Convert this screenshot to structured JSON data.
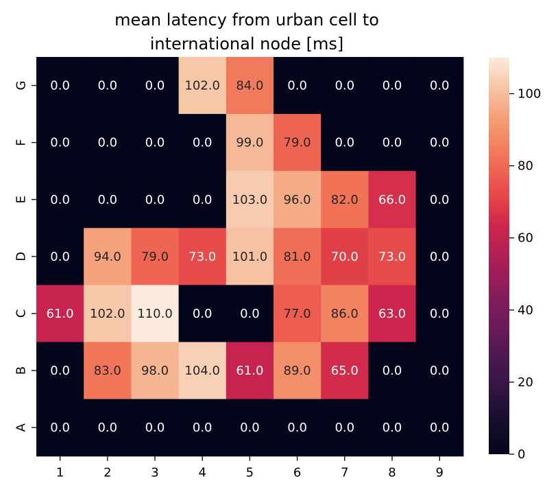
{
  "chart_data": {
    "type": "heatmap",
    "title_lines": [
      "mean latency from urban cell to",
      "international node [ms]"
    ],
    "x_labels": [
      "1",
      "2",
      "3",
      "4",
      "5",
      "6",
      "7",
      "8",
      "9"
    ],
    "y_labels": [
      "G",
      "F",
      "E",
      "D",
      "C",
      "B",
      "A"
    ],
    "values": [
      [
        0.0,
        0.0,
        0.0,
        102.0,
        84.0,
        0.0,
        0.0,
        0.0,
        0.0
      ],
      [
        0.0,
        0.0,
        0.0,
        0.0,
        99.0,
        79.0,
        0.0,
        0.0,
        0.0
      ],
      [
        0.0,
        0.0,
        0.0,
        0.0,
        103.0,
        96.0,
        82.0,
        66.0,
        0.0
      ],
      [
        0.0,
        94.0,
        79.0,
        73.0,
        101.0,
        81.0,
        70.0,
        73.0,
        0.0
      ],
      [
        61.0,
        102.0,
        110.0,
        0.0,
        0.0,
        77.0,
        86.0,
        63.0,
        0.0
      ],
      [
        0.0,
        83.0,
        98.0,
        104.0,
        61.0,
        89.0,
        65.0,
        0.0,
        0.0
      ],
      [
        0.0,
        0.0,
        0.0,
        0.0,
        0.0,
        0.0,
        0.0,
        0.0,
        0.0
      ]
    ],
    "value_format": "1 decimal",
    "colormap": "rocket",
    "vmin": 0,
    "vmax": 110,
    "colorbar_ticks": [
      "0",
      "20",
      "40",
      "60",
      "80",
      "100"
    ],
    "xlabel": "",
    "ylabel": ""
  }
}
